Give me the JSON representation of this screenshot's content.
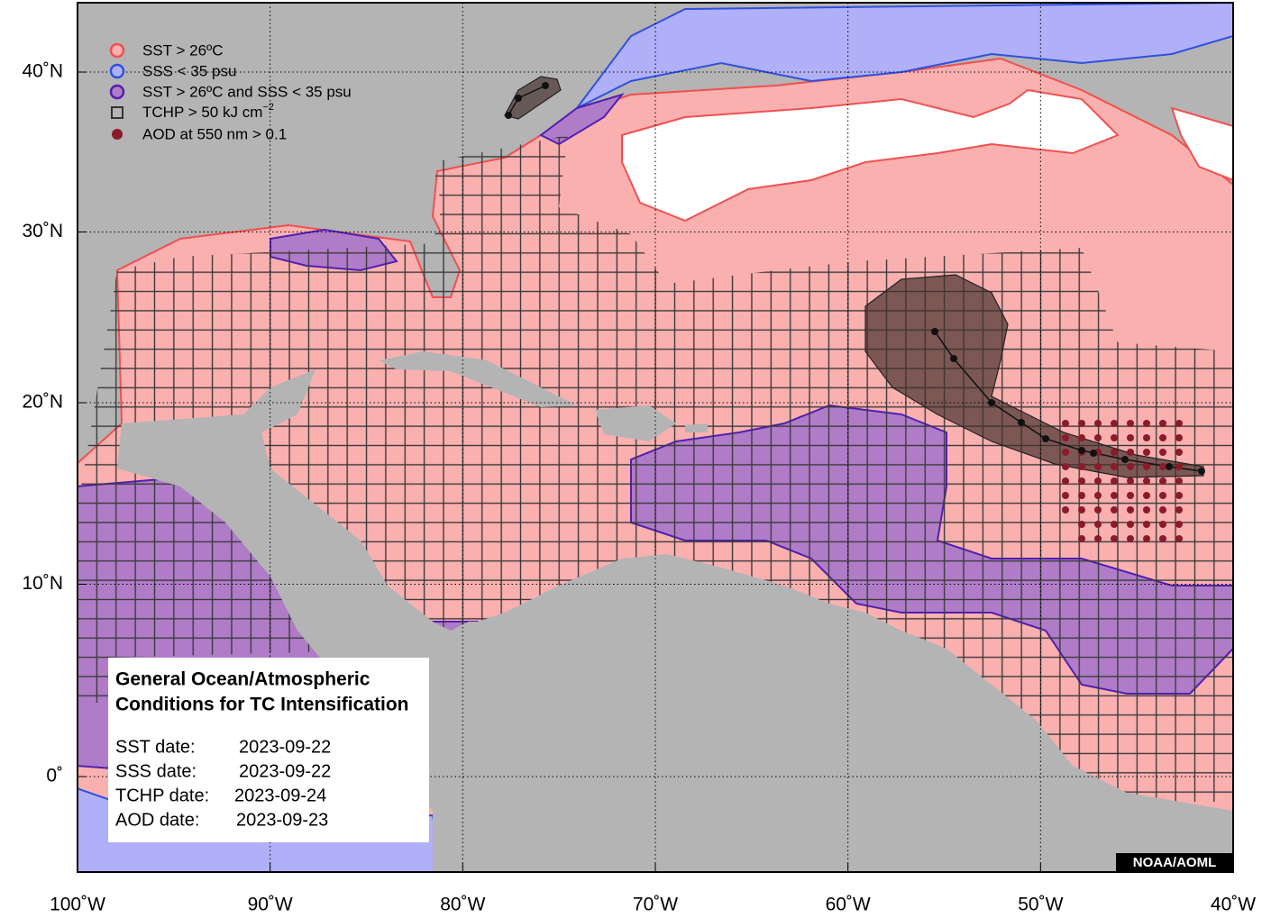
{
  "legend": [
    {
      "label": "SST > 26ºC"
    },
    {
      "label": "SSS < 35 psu"
    },
    {
      "label": "SST > 26ºC and SSS < 35 psu"
    },
    {
      "label": "TCHP > 50 kJ cm",
      "superscript": "−2"
    },
    {
      "label": "AOD at 550 nm > 0.1"
    }
  ],
  "lon_ticks": [
    {
      "value": -100,
      "label": "100˚W"
    },
    {
      "value": -90,
      "label": "90˚W"
    },
    {
      "value": -80,
      "label": "80˚W"
    },
    {
      "value": -70,
      "label": "70˚W"
    },
    {
      "value": -60,
      "label": "60˚W"
    },
    {
      "value": -50,
      "label": "50˚W"
    },
    {
      "value": -40,
      "label": "40˚W"
    }
  ],
  "lat_ticks": [
    {
      "value": 0,
      "label": "0˚"
    },
    {
      "value": 10,
      "label": "10˚N"
    },
    {
      "value": 20,
      "label": "20˚N"
    },
    {
      "value": 30,
      "label": "30˚N"
    },
    {
      "value": 40,
      "label": "40˚N"
    }
  ],
  "info_box": {
    "title": [
      "General Ocean/Atmospheric",
      "Conditions for TC Intensification"
    ],
    "dates": [
      {
        "label": "SST date:",
        "value": "2023-09-22"
      },
      {
        "label": "SSS date:",
        "value": "2023-09-22"
      },
      {
        "label": "TCHP date:",
        "value": "2023-09-24"
      },
      {
        "label": "AOD date:",
        "value": "2023-09-23"
      }
    ]
  },
  "credit": "NOAA/AOML"
}
